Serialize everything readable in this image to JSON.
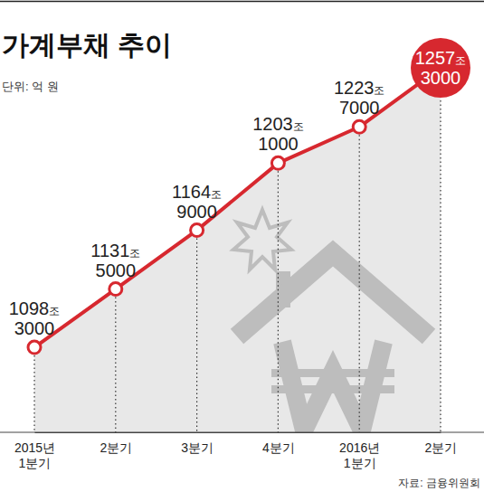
{
  "chart_data": {
    "type": "line",
    "title": "가계부채 추이",
    "subtitle": "단위: 억 원",
    "source": "자료: 금융위원회",
    "categories": [
      "2015년 1분기",
      "2분기",
      "3분기",
      "4분기",
      "2016년 1분기",
      "2분기"
    ],
    "values": [
      10983000,
      11315000,
      11649000,
      12031000,
      12237000,
      12573000
    ],
    "value_labels": [
      "1098조 3000",
      "1131조 5000",
      "1164조 9000",
      "1203조 1000",
      "1223조 7000",
      "1257조 3000"
    ],
    "color": "#d7282f",
    "marker": "circle",
    "data_labels": true,
    "tick_labels": "x",
    "ylim": [
      10500000,
      12650000
    ]
  }
}
